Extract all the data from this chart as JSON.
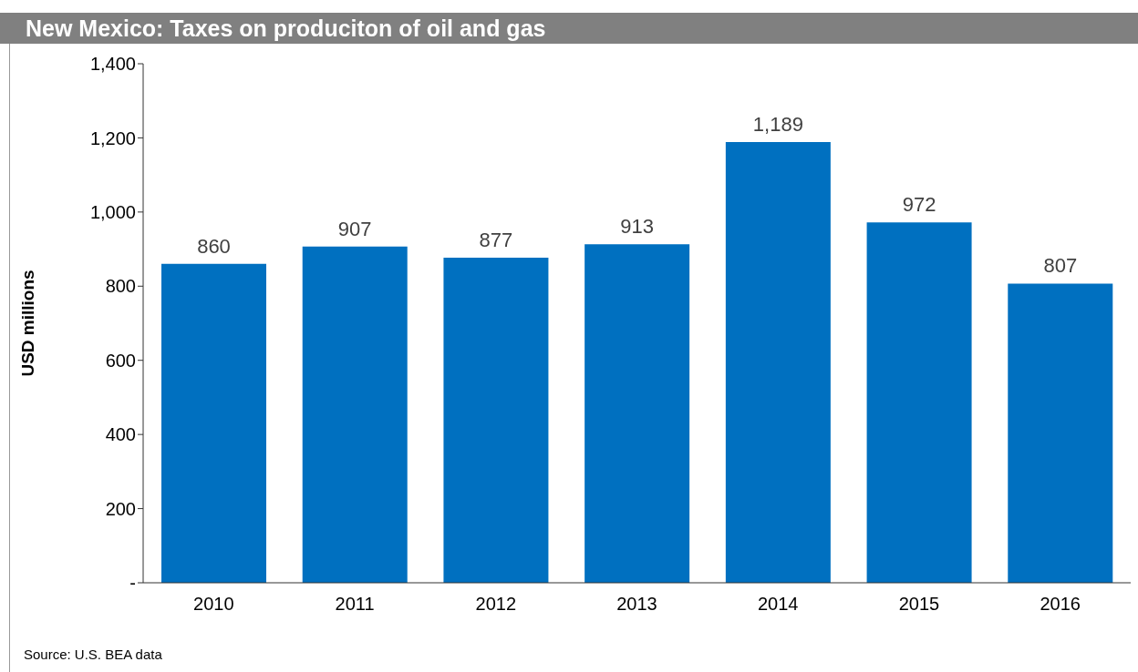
{
  "chart_data": {
    "type": "bar",
    "title": "New Mexico: Taxes on produciton of oil and gas",
    "ylabel": "USD millions",
    "categories": [
      "2010",
      "2011",
      "2012",
      "2013",
      "2014",
      "2015",
      "2016"
    ],
    "values": [
      860,
      907,
      877,
      913,
      1189,
      972,
      807
    ],
    "color": "#0070c0",
    "ylim": [
      0,
      1400
    ],
    "yticks": [
      {
        "value": 0,
        "label": "-"
      },
      200,
      400,
      600,
      800,
      {
        "value": 1000,
        "label": "1,000"
      },
      {
        "value": 1200,
        "label": "1,200"
      },
      {
        "value": 1400,
        "label": "1,400"
      }
    ],
    "value_labels": [
      "860",
      "907",
      "877",
      "913",
      "1,189",
      "972",
      "807"
    ],
    "grid": false,
    "legend": false,
    "annotations": [
      "Source: U.S. BEA data"
    ]
  }
}
